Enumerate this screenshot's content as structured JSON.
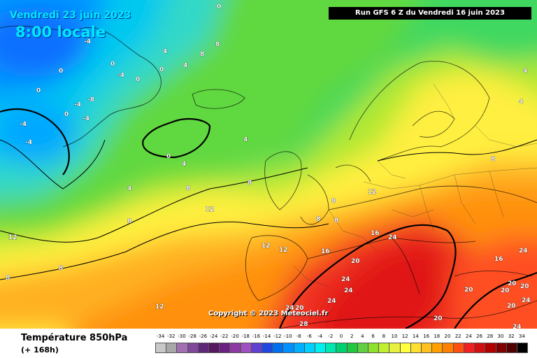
{
  "header": {
    "date": "Vendredi 23 juin 2023",
    "time": "8:00 locale",
    "run": "Run GFS 6 Z du Vendredi 16 juin 2023"
  },
  "map": {
    "copyright": "Copyright © 2023 Meteociel.fr",
    "isotherm_labels": [
      "0",
      "-4",
      "-8",
      "4",
      "8",
      "12",
      "16",
      "20",
      "24",
      "28"
    ]
  },
  "footer": {
    "parameter": "Température 850hPa",
    "lead_time": "(+ 168h)",
    "scale_labels": [
      "-34",
      "-32",
      "-30",
      "-28",
      "-26",
      "-24",
      "-22",
      "-20",
      "-18",
      "-16",
      "-14",
      "-12",
      "-10",
      "-8",
      "-6",
      "-4",
      "-2",
      "0",
      "2",
      "4",
      "6",
      "8",
      "10",
      "12",
      "14",
      "16",
      "18",
      "20",
      "22",
      "24",
      "26",
      "28",
      "30",
      "32",
      "34"
    ],
    "scale_colors": [
      "#c8c8c8",
      "#a8a8a8",
      "#a070b0",
      "#80489a",
      "#602878",
      "#581860",
      "#6a2080",
      "#8a3aa0",
      "#a050c0",
      "#6040d0",
      "#2048e0",
      "#0070f0",
      "#0090ff",
      "#00b0ff",
      "#00d0ff",
      "#00f0f0",
      "#00e8b0",
      "#00d070",
      "#20c840",
      "#60d040",
      "#90e030",
      "#c0f030",
      "#e8f040",
      "#ffff40",
      "#ffe030",
      "#ffc020",
      "#ffa000",
      "#ff8000",
      "#ff5010",
      "#f02020",
      "#d01010",
      "#b00000",
      "#800000",
      "#500000",
      "#000000"
    ]
  }
}
